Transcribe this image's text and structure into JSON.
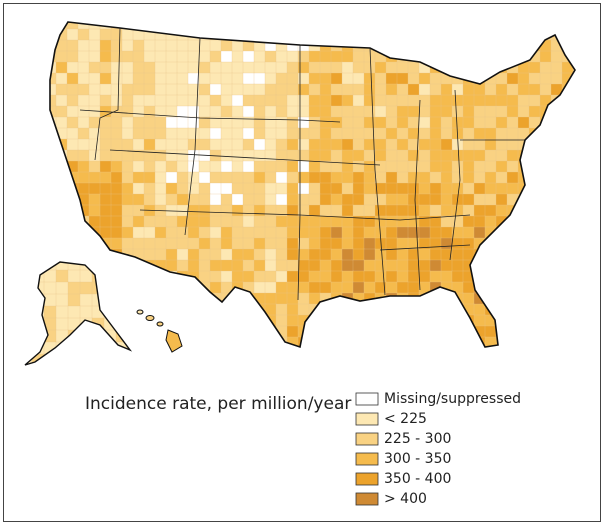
{
  "legend": {
    "title": "Incidence rate, per million/year",
    "items": [
      {
        "label": "Missing/suppressed",
        "color": "#ffffff"
      },
      {
        "label": "< 225",
        "color": "#fde8b3"
      },
      {
        "label": "225 - 300",
        "color": "#f9d283"
      },
      {
        "label": "300 - 350",
        "color": "#f5bb4d"
      },
      {
        "label": "350 - 400",
        "color": "#eca32c"
      },
      {
        "label": "> 400",
        "color": "#cf8a34"
      }
    ]
  }
}
